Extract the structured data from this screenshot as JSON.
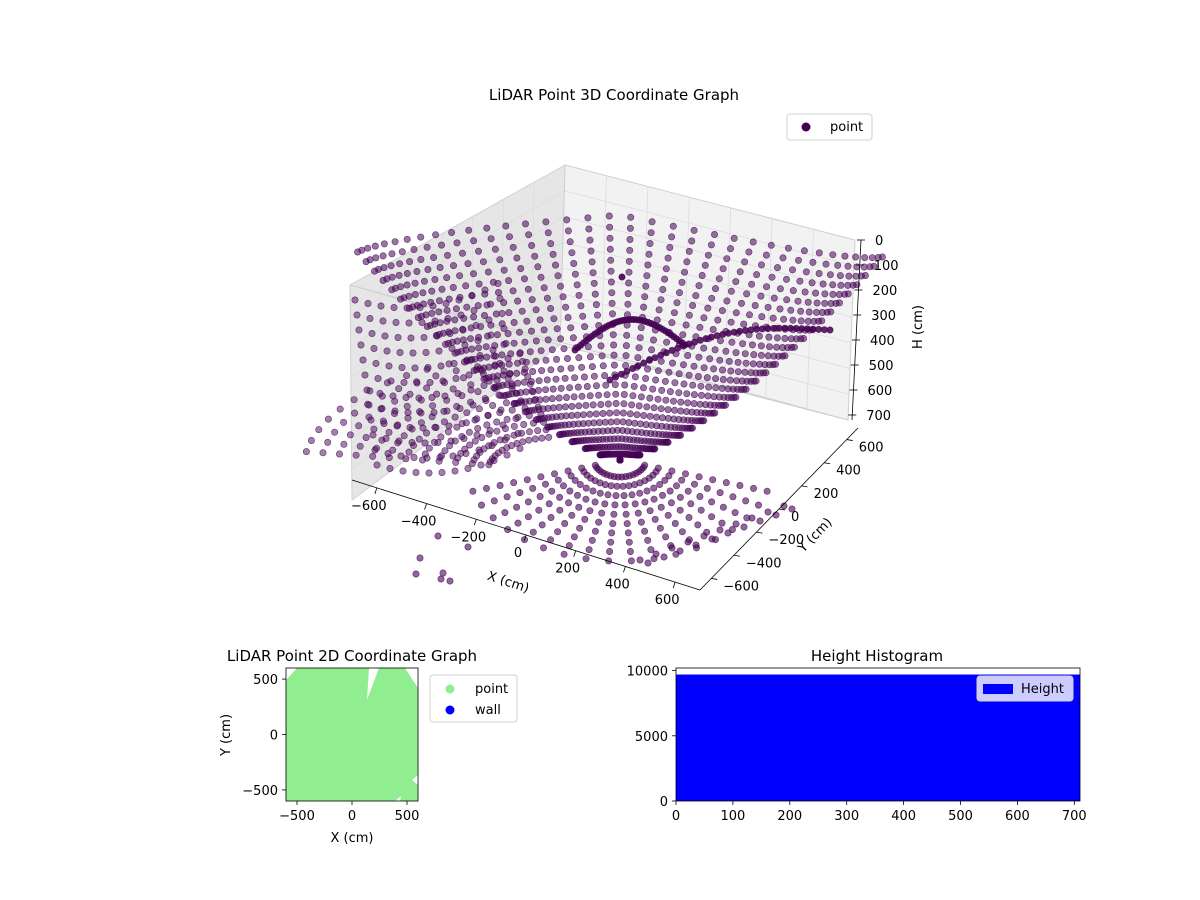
{
  "chart_data": [
    {
      "type": "scatter3d",
      "title": "LiDAR Point 3D Coordinate Graph",
      "xlabel": "X (cm)",
      "ylabel": "Y (cm)",
      "zlabel": "H (cm)",
      "xlim": [
        -700,
        700
      ],
      "ylim": [
        -700,
        700
      ],
      "zlim": [
        0,
        720
      ],
      "z_inverted": true,
      "x_ticks": [
        -600,
        -400,
        -200,
        0,
        200,
        400,
        600
      ],
      "y_ticks": [
        -600,
        -400,
        -200,
        0,
        200,
        400,
        600
      ],
      "z_ticks": [
        0,
        100,
        200,
        300,
        400,
        500,
        600,
        700
      ],
      "legend": [
        {
          "label": "point",
          "color": "#440154"
        }
      ],
      "legend_position": "top-right",
      "series": [
        {
          "name": "point",
          "color": "#440154",
          "description_only": true
        }
      ],
      "grid": true
    },
    {
      "type": "scatter",
      "title": "LiDAR Point 2D Coordinate Graph",
      "xlabel": "X (cm)",
      "ylabel": "Y (cm)",
      "xlim": [
        -600,
        600
      ],
      "ylim": [
        -600,
        600
      ],
      "x_ticks": [
        -500,
        0,
        500
      ],
      "y_ticks": [
        -500,
        0,
        500
      ],
      "legend": [
        {
          "label": "point",
          "color": "#90ee90"
        },
        {
          "label": "wall",
          "color": "#0000ff"
        }
      ],
      "legend_position": "outside-right"
    },
    {
      "type": "bar",
      "title": "Height Histogram",
      "xlim": [
        0,
        710
      ],
      "ylim": [
        0,
        10200
      ],
      "x_ticks": [
        0,
        100,
        200,
        300,
        400,
        500,
        600,
        700
      ],
      "y_ticks": [
        0,
        5000,
        10000
      ],
      "bins": [
        {
          "x_start": 0,
          "x_end": 710,
          "count": 9700
        }
      ],
      "legend": [
        {
          "label": "Height",
          "color": "#0000ff"
        }
      ],
      "legend_position": "top-right"
    }
  ]
}
